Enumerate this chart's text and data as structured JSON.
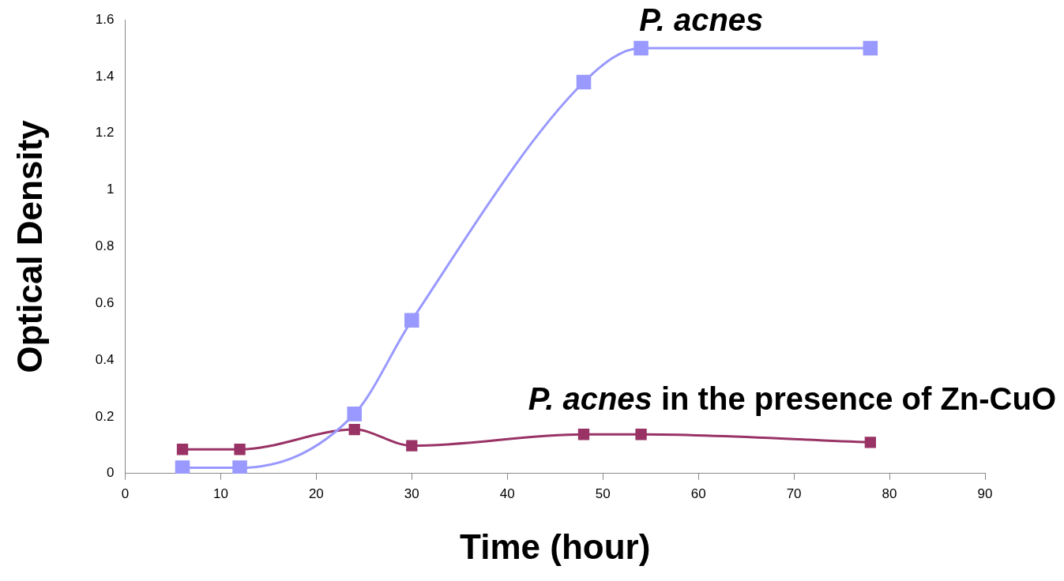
{
  "chart_data": {
    "type": "line",
    "xlabel": "Time (hour)",
    "ylabel": "Optical Density",
    "x": [
      6,
      12,
      24,
      30,
      48,
      54,
      78
    ],
    "series": [
      {
        "name": "P. acnes",
        "color": "#9999ff",
        "values": [
          0.02,
          0.02,
          0.21,
          0.54,
          1.38,
          1.5,
          1.5
        ]
      },
      {
        "name": "P. acnes in the presence of Zn-CuO",
        "color": "#993366",
        "values": [
          0.085,
          0.085,
          0.155,
          0.098,
          0.138,
          0.138,
          0.11
        ]
      }
    ],
    "xlim": [
      0,
      90
    ],
    "xticks": [
      0,
      10,
      20,
      30,
      40,
      50,
      60,
      70,
      80,
      90
    ],
    "ylim": [
      0,
      1.6
    ],
    "yticks": [
      0,
      0.2,
      0.4,
      0.6,
      0.8,
      1,
      1.2,
      1.4,
      1.6
    ],
    "grid": false,
    "legend": false,
    "marker": "square",
    "line_style": "solid"
  }
}
